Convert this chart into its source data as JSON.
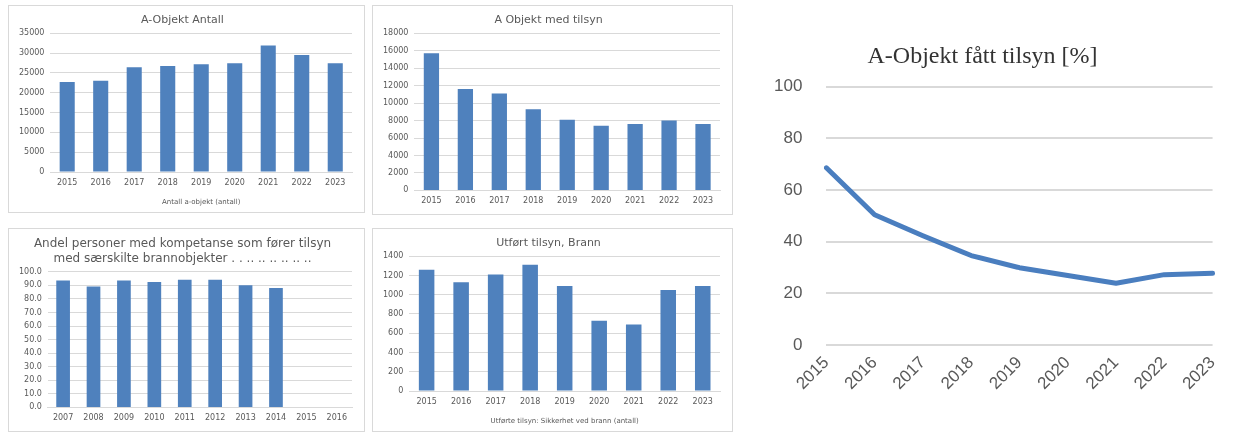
{
  "chart_data": [
    {
      "type": "bar",
      "title": "A-Objekt Antall",
      "xlabel": "Antall a-objekt (antall)",
      "categories": [
        "2015",
        "2016",
        "2017",
        "2018",
        "2019",
        "2020",
        "2021",
        "2022",
        "2023"
      ],
      "series": [
        {
          "color": "#4f81bd",
          "values": [
            22700,
            23000,
            26400,
            26700,
            27200,
            27400,
            31900,
            29500,
            27400
          ]
        }
      ],
      "ylim": [
        0,
        35000
      ],
      "yticks": [
        0,
        5000,
        10000,
        15000,
        20000,
        25000,
        30000,
        35000
      ],
      "grid": "y"
    },
    {
      "type": "bar",
      "title": "A Objekt med tilsyn",
      "categories": [
        "2015",
        "2016",
        "2017",
        "2018",
        "2019",
        "2020",
        "2021",
        "2022",
        "2023"
      ],
      "series": [
        {
          "color": "#4f81bd",
          "values": [
            15700,
            11600,
            11100,
            9300,
            8100,
            7400,
            7600,
            8000,
            7600
          ]
        }
      ],
      "ylim": [
        0,
        18000
      ],
      "yticks": [
        0,
        2000,
        4000,
        6000,
        8000,
        10000,
        12000,
        14000,
        16000,
        18000
      ],
      "grid": "y"
    },
    {
      "type": "bar",
      "title": "Andel personer med kompetanse som fører tilsyn med særskilte brannobjekter . . .. .. .. .. .. ..",
      "categories": [
        "2007",
        "2008",
        "2009",
        "2010",
        "2011",
        "2012",
        "2013",
        "2014",
        "2015",
        "2016"
      ],
      "series": [
        {
          "color": "#4f81bd",
          "values": [
            93.6,
            89.1,
            93.6,
            92.5,
            94.1,
            94.1,
            90.1,
            88.0,
            null,
            null
          ]
        }
      ],
      "ylim": [
        0,
        100
      ],
      "yticks": [
        {
          "value": 0,
          "label": "0.0"
        },
        {
          "value": 10,
          "label": "10.0"
        },
        {
          "value": 20,
          "label": "20.0"
        },
        {
          "value": 30,
          "label": "30.0"
        },
        {
          "value": 40,
          "label": "40.0"
        },
        {
          "value": 50,
          "label": "50.0"
        },
        {
          "value": 60,
          "label": "60.0"
        },
        {
          "value": 70,
          "label": "70.0"
        },
        {
          "value": 80,
          "label": "80.0"
        },
        {
          "value": 90,
          "label": "90.0"
        },
        {
          "value": 100,
          "label": "100.0"
        }
      ],
      "grid": "y"
    },
    {
      "type": "bar",
      "title": "Utført tilsyn, Brann",
      "xlabel": "Utførte tilsyn: Sikkerhet ved brann (antall)",
      "categories": [
        "2015",
        "2016",
        "2017",
        "2018",
        "2019",
        "2020",
        "2021",
        "2022",
        "2023"
      ],
      "series": [
        {
          "color": "#4f81bd",
          "values": [
            1260,
            1130,
            1210,
            1310,
            1090,
            730,
            690,
            1050,
            1090
          ]
        }
      ],
      "ylim": [
        0,
        1400
      ],
      "yticks": [
        0,
        200,
        400,
        600,
        800,
        1000,
        1200,
        1400
      ],
      "grid": "y"
    },
    {
      "type": "line",
      "title": "A-Objekt fått tilsyn [%]",
      "categories": [
        "2015",
        "2016",
        "2017",
        "2018",
        "2019",
        "2020",
        "2021",
        "2022",
        "2023"
      ],
      "series": [
        {
          "color": "#4a7ebf",
          "values": [
            68.6,
            50.4,
            42.3,
            34.6,
            29.9,
            26.9,
            23.9,
            27.2,
            27.7
          ]
        }
      ],
      "ylim": [
        0,
        100
      ],
      "yticks": [
        0,
        20,
        40,
        60,
        80,
        100
      ],
      "grid": "y",
      "marker": "none"
    }
  ]
}
